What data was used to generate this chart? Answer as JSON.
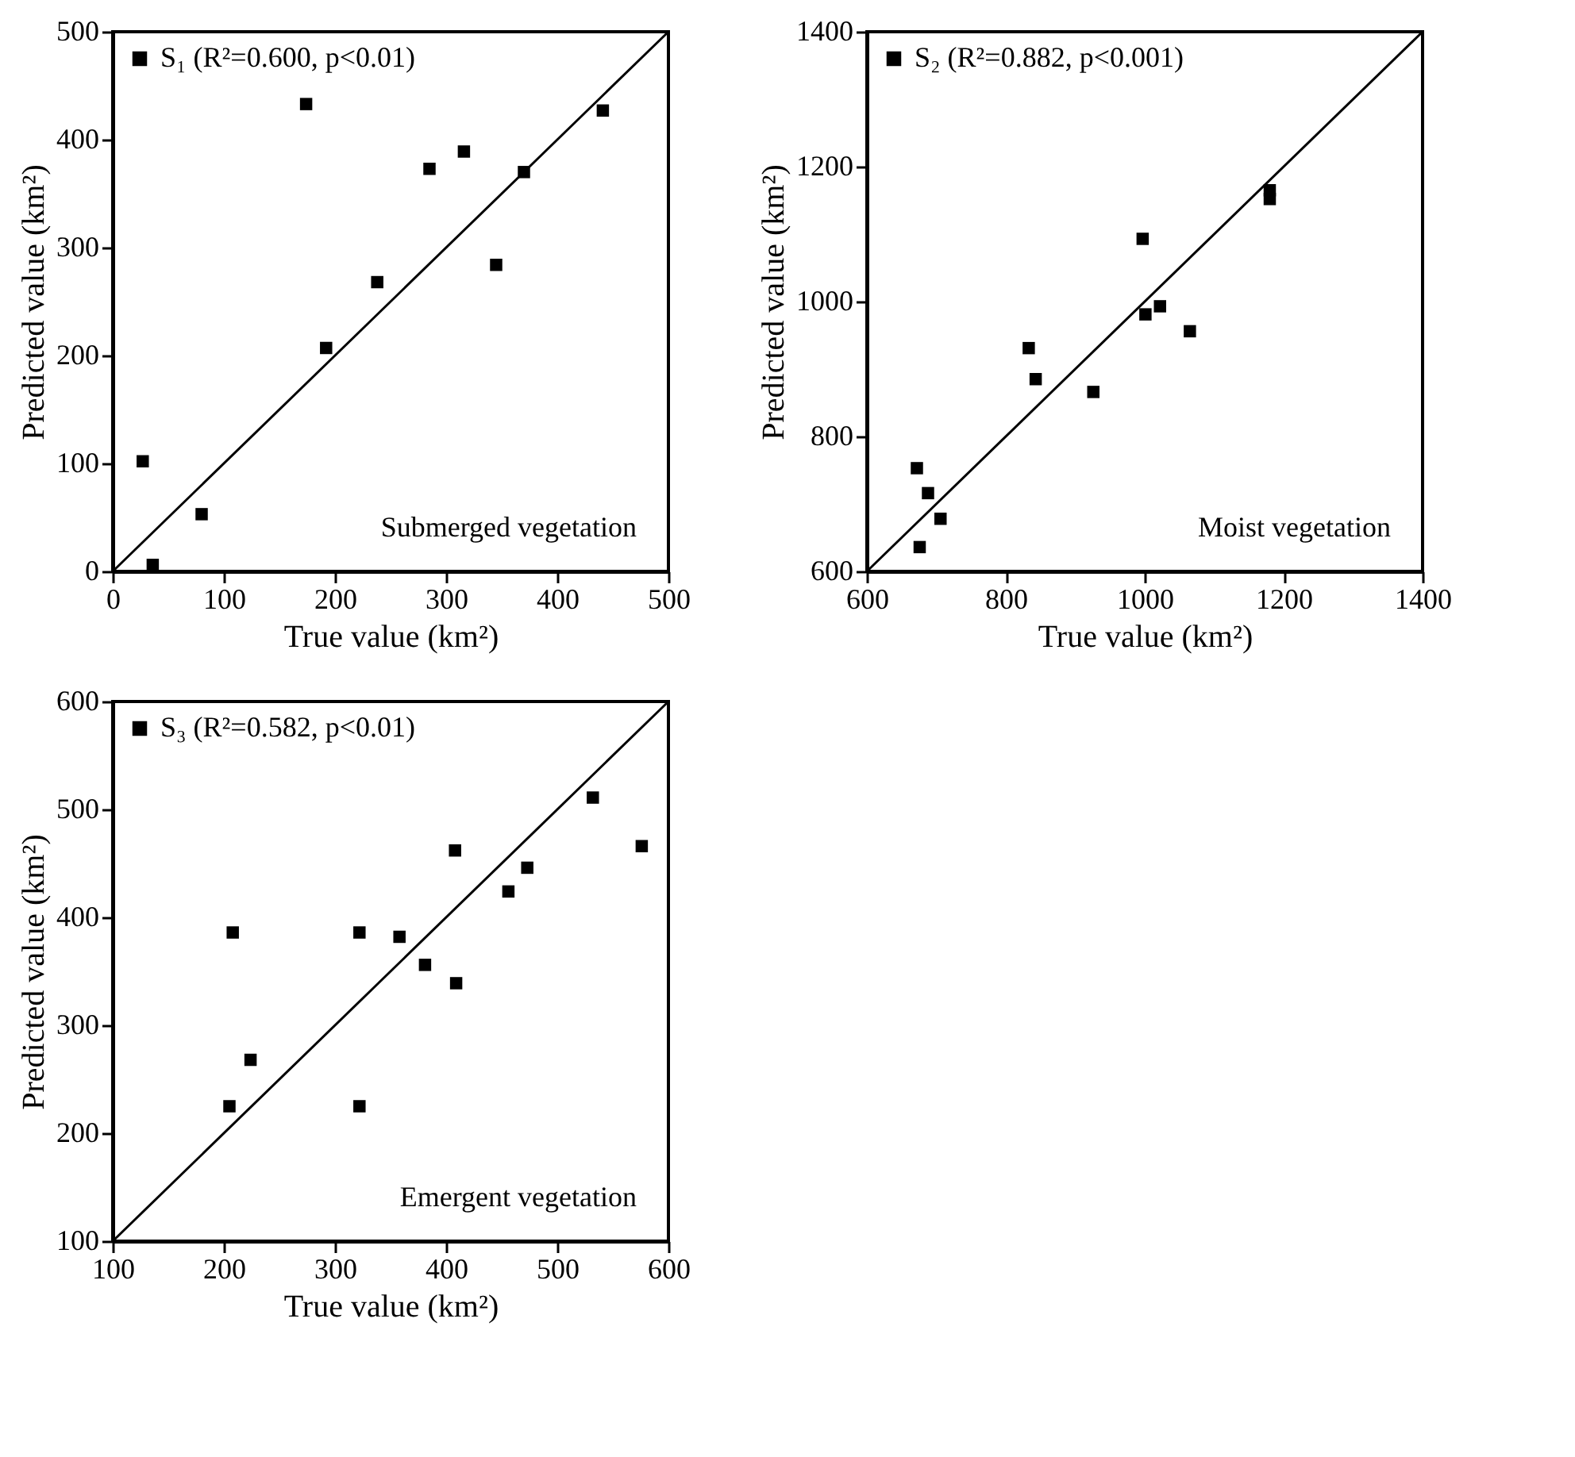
{
  "chart_data": [
    {
      "type": "scatter",
      "xlabel": "True value (km²)",
      "ylabel": "Predicted value (km²)",
      "xlim": [
        0,
        500
      ],
      "ylim": [
        0,
        500
      ],
      "xticks": [
        0,
        100,
        200,
        300,
        400,
        500
      ],
      "yticks": [
        0,
        100,
        200,
        300,
        400,
        500
      ],
      "grid": false,
      "legend": "top left",
      "annotations": [
        "Submerged vegetation"
      ],
      "series": [
        {
          "name": "S₁ (R²=0.600, p<0.01)",
          "color": "#000000",
          "marker": "square",
          "x": [
            27,
            36,
            80,
            174,
            192,
            238,
            285,
            316,
            345,
            370,
            441
          ],
          "values": [
            102,
            6,
            53,
            433,
            207,
            268,
            373,
            389,
            284,
            370,
            427
          ]
        },
        {
          "type": "line",
          "color": "#000000",
          "x": [
            0,
            500
          ],
          "values": [
            0,
            500
          ]
        }
      ]
    },
    {
      "type": "scatter",
      "xlabel": "True value (km²)",
      "ylabel": "Predicted value (km²)",
      "xlim": [
        600,
        1400
      ],
      "ylim": [
        600,
        1400
      ],
      "xticks": [
        600,
        800,
        1000,
        1200,
        1400
      ],
      "yticks": [
        600,
        800,
        1000,
        1200,
        1400
      ],
      "grid": false,
      "legend": "top left",
      "annotations": [
        "Moist vegetation"
      ],
      "series": [
        {
          "name": "S₂ (R²=0.882, p<0.001)",
          "color": "#000000",
          "marker": "square",
          "x": [
            672,
            676,
            688,
            706,
            833,
            843,
            926,
            997,
            1001,
            1022,
            1065,
            1180,
            1180
          ],
          "values": [
            753,
            636,
            716,
            678,
            931,
            885,
            866,
            1093,
            981,
            993,
            956,
            1165,
            1152
          ]
        },
        {
          "type": "line",
          "color": "#000000",
          "x": [
            600,
            1400
          ],
          "values": [
            600,
            1400
          ]
        }
      ]
    },
    {
      "type": "scatter",
      "xlabel": "True value (km²)",
      "ylabel": "Predicted value (km²)",
      "xlim": [
        100,
        600
      ],
      "ylim": [
        100,
        600
      ],
      "xticks": [
        100,
        200,
        300,
        400,
        500,
        600
      ],
      "yticks": [
        100,
        200,
        300,
        400,
        500,
        600
      ],
      "grid": false,
      "legend": "top left",
      "annotations": [
        "Emergent vegetation"
      ],
      "series": [
        {
          "name": "S₃ (R²=0.582, p<0.01)",
          "color": "#000000",
          "marker": "square",
          "x": [
            205,
            208,
            224,
            322,
            322,
            358,
            381,
            409,
            408,
            456,
            473,
            532,
            576
          ],
          "values": [
            225,
            386,
            268,
            386,
            225,
            382,
            356,
            339,
            462,
            424,
            446,
            511,
            466
          ]
        },
        {
          "type": "line",
          "color": "#000000",
          "x": [
            100,
            600
          ],
          "values": [
            100,
            600
          ]
        }
      ]
    }
  ]
}
